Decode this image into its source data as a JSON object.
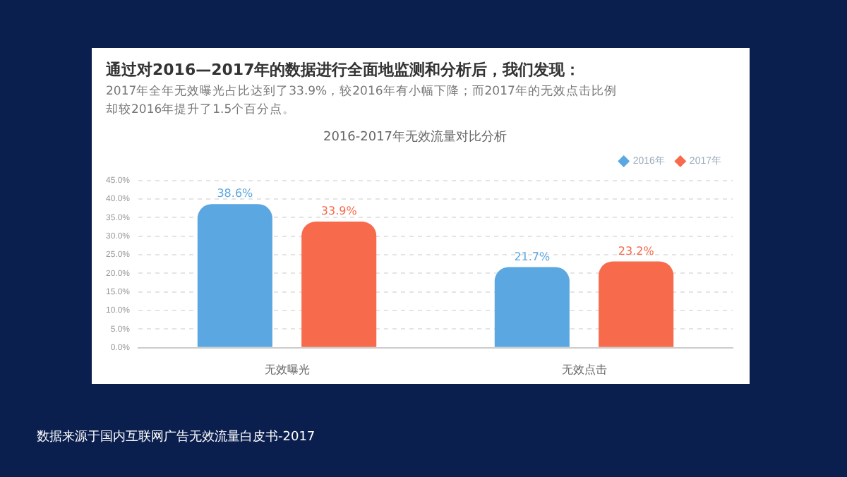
{
  "chart_data": {
    "type": "bar",
    "title": "2016-2017年无效流量对比分析",
    "categories": [
      "无效曝光",
      "无效点击"
    ],
    "series": [
      {
        "name": "2016年",
        "color": "#5ba7e1",
        "values": [
          38.6,
          21.7
        ]
      },
      {
        "name": "2017年",
        "color": "#f76a4b",
        "values": [
          33.9,
          23.2
        ]
      }
    ],
    "ylim": [
      0,
      45
    ],
    "yticks": [
      {
        "value": 0,
        "label": "0.0%"
      },
      {
        "value": 5,
        "label": "5.0%"
      },
      {
        "value": 10,
        "label": "10.0%"
      },
      {
        "value": 15,
        "label": "15.0%"
      },
      {
        "value": 20,
        "label": "20.0%"
      },
      {
        "value": 25,
        "label": "25.0%"
      },
      {
        "value": 30,
        "label": "30.0%"
      },
      {
        "value": 35,
        "label": "35.0%"
      },
      {
        "value": 40,
        "label": "40.0%"
      },
      {
        "value": 45,
        "label": "45.0%"
      }
    ],
    "value_labels": [
      [
        "38.6%",
        "21.7%"
      ],
      [
        "33.9%",
        "23.2%"
      ]
    ],
    "grid": "y",
    "legend": "top right",
    "marker": "diamond",
    "annotations": [
      "通过对2016—2017年的数据进行全面地监测和分析后，我们发现：",
      "2017年全年无效曝光占比达到了33.9%，较2016年有小幅下降；而2017年的无效点击比例却较2016年提升了1.5个百分点。",
      "数据来源于国内互联网广告无效流量白皮书-2017"
    ]
  }
}
